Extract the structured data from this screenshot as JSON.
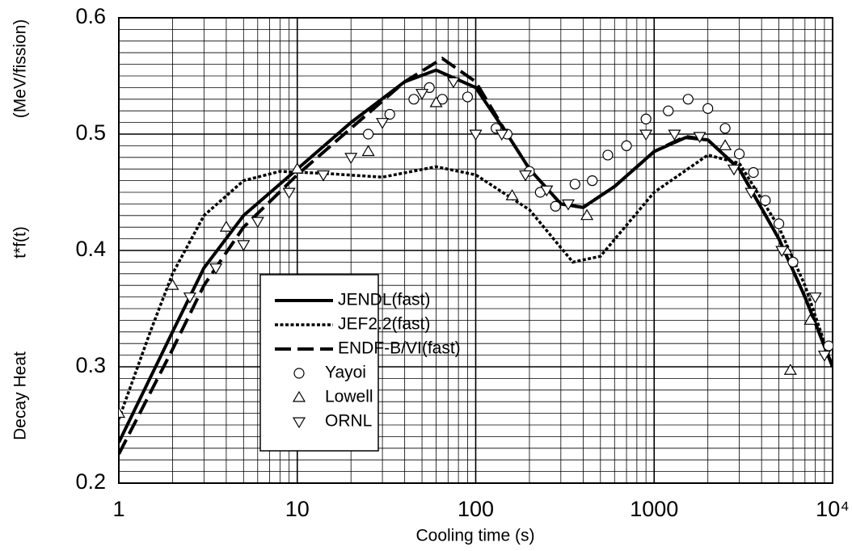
{
  "chart_data": {
    "type": "line",
    "xlabel": "Cooling time (s)",
    "ylabel": [
      "Decay Heat",
      "t*f(t)",
      "(MeV/fission)"
    ],
    "xscale": "log",
    "xlim": [
      1,
      10000
    ],
    "ylim": [
      0.2,
      0.6
    ],
    "xticks": [
      1,
      10,
      100,
      1000,
      {
        "value": 10000,
        "label": "10⁴"
      }
    ],
    "yticks": [
      0.2,
      0.3,
      0.4,
      0.5,
      0.6
    ],
    "grid": true,
    "legend": "center",
    "series": [
      {
        "name": "JENDL(fast)",
        "color": "#000000",
        "style": "solid",
        "x": [
          1,
          2,
          3,
          5,
          10,
          20,
          40,
          60,
          100,
          150,
          200,
          300,
          400,
          600,
          1000,
          1500,
          2000,
          3000,
          5000,
          7000,
          10000
        ],
        "values": [
          0.235,
          0.33,
          0.385,
          0.43,
          0.47,
          0.51,
          0.545,
          0.555,
          0.54,
          0.5,
          0.47,
          0.44,
          0.437,
          0.455,
          0.485,
          0.497,
          0.495,
          0.47,
          0.41,
          0.36,
          0.3
        ]
      },
      {
        "name": "JEF2.2(fast)",
        "color": "#000000",
        "style": "dotted",
        "x": [
          1,
          1.5,
          2,
          3,
          5,
          8,
          15,
          30,
          60,
          100,
          200,
          350,
          500,
          1000,
          2000,
          3000,
          5000,
          7000,
          10000
        ],
        "values": [
          0.255,
          0.33,
          0.38,
          0.43,
          0.46,
          0.468,
          0.466,
          0.463,
          0.472,
          0.465,
          0.435,
          0.39,
          0.395,
          0.45,
          0.482,
          0.475,
          0.42,
          0.37,
          0.3
        ]
      },
      {
        "name": "ENDF-B/VI(fast)",
        "color": "#000000",
        "style": "dashed",
        "x": [
          1,
          2,
          3,
          5,
          10,
          20,
          40,
          65,
          100,
          150,
          200,
          300,
          400,
          600,
          1000,
          1500,
          2000,
          3000,
          5000,
          7000,
          10000
        ],
        "values": [
          0.225,
          0.315,
          0.37,
          0.42,
          0.465,
          0.505,
          0.545,
          0.565,
          0.545,
          0.5,
          0.47,
          0.44,
          0.437,
          0.455,
          0.485,
          0.498,
          0.495,
          0.47,
          0.41,
          0.36,
          0.3
        ]
      },
      {
        "name": "Yayoi",
        "color": "#000000",
        "marker": "circle",
        "x": [
          25,
          33,
          45,
          55,
          65,
          90,
          130,
          150,
          200,
          230,
          280,
          360,
          450,
          550,
          700,
          900,
          1200,
          1550,
          2000,
          2500,
          3000,
          3600,
          4200,
          5000,
          6000,
          9500
        ],
        "values": [
          0.5,
          0.517,
          0.53,
          0.54,
          0.53,
          0.532,
          0.505,
          0.5,
          0.468,
          0.45,
          0.438,
          0.457,
          0.46,
          0.482,
          0.49,
          0.513,
          0.52,
          0.53,
          0.522,
          0.505,
          0.483,
          0.467,
          0.443,
          0.423,
          0.39,
          0.318
        ]
      },
      {
        "name": "Lowell",
        "color": "#000000",
        "marker": "triangle-up",
        "x": [
          1,
          2,
          4,
          10,
          25,
          60,
          160,
          420,
          2500,
          5500,
          5800,
          7500
        ],
        "values": [
          0.26,
          0.37,
          0.42,
          0.47,
          0.485,
          0.527,
          0.447,
          0.43,
          0.49,
          0.4,
          0.297,
          0.34
        ]
      },
      {
        "name": "ORNL",
        "color": "#000000",
        "marker": "triangle-down",
        "x": [
          2.5,
          3.5,
          5,
          6,
          9,
          14,
          20,
          30,
          50,
          75,
          100,
          140,
          190,
          250,
          330,
          900,
          1300,
          1800,
          2800,
          3500,
          5200,
          8000,
          9000
        ],
        "values": [
          0.36,
          0.385,
          0.405,
          0.425,
          0.45,
          0.465,
          0.48,
          0.51,
          0.535,
          0.545,
          0.5,
          0.5,
          0.465,
          0.452,
          0.44,
          0.5,
          0.5,
          0.498,
          0.47,
          0.45,
          0.4,
          0.36,
          0.31
        ]
      }
    ]
  }
}
